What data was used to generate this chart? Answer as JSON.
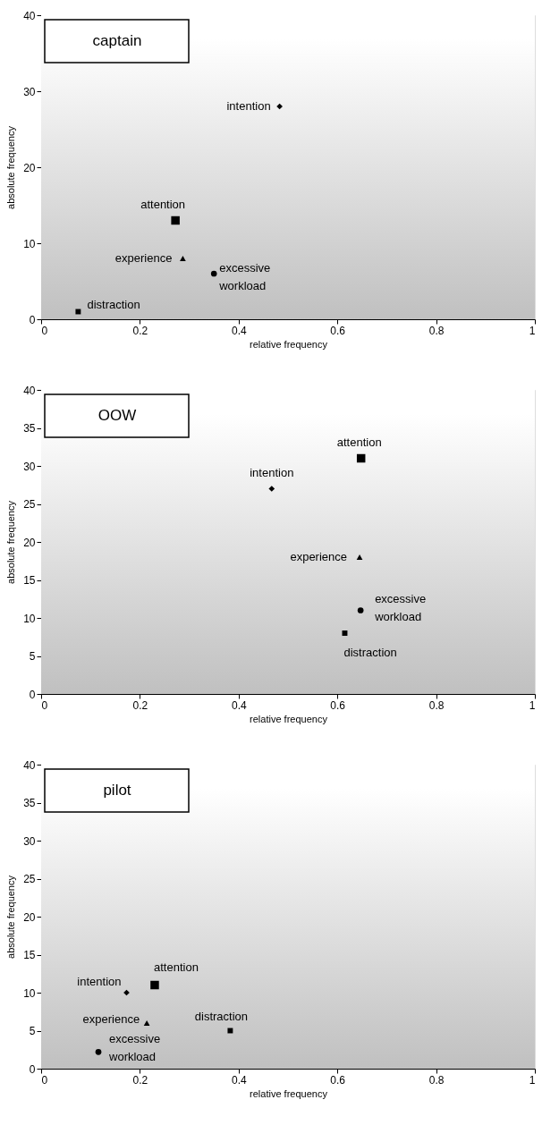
{
  "chart_data": [
    {
      "type": "scatter",
      "title": "captain",
      "xlabel": "relative frequency",
      "ylabel": "absolute frequency",
      "xlim": [
        0,
        1
      ],
      "xticks": [
        0,
        0.2,
        0.4,
        0.6,
        0.8,
        1
      ],
      "ylim": [
        0,
        40
      ],
      "yticks": [
        0,
        10,
        20,
        30,
        40
      ],
      "grid": false,
      "series": [
        {
          "name": "intention",
          "color": "#000000",
          "marker": "diamond",
          "x": [
            0.483
          ],
          "values": [
            28
          ]
        },
        {
          "name": "attention",
          "color": "#000000",
          "marker": "square",
          "x": [
            0.272
          ],
          "values": [
            13
          ]
        },
        {
          "name": "experience",
          "color": "#000000",
          "marker": "triangle",
          "x": [
            0.287
          ],
          "values": [
            8
          ]
        },
        {
          "name": "excessive workload",
          "color": "#000000",
          "marker": "circle",
          "x": [
            0.35
          ],
          "values": [
            6
          ]
        },
        {
          "name": "distraction",
          "color": "#000000",
          "marker": "square",
          "x": [
            0.075
          ],
          "values": [
            1
          ]
        }
      ]
    },
    {
      "type": "scatter",
      "title": "OOW",
      "xlabel": "relative frequency",
      "ylabel": "absolute frequency",
      "xlim": [
        0,
        1
      ],
      "xticks": [
        0,
        0.2,
        0.4,
        0.6,
        0.8,
        1
      ],
      "ylim": [
        0,
        40
      ],
      "yticks": [
        0,
        5,
        10,
        15,
        20,
        25,
        30,
        35,
        40
      ],
      "grid": false,
      "series": [
        {
          "name": "intention",
          "color": "#000000",
          "marker": "diamond",
          "x": [
            0.467
          ],
          "values": [
            27
          ]
        },
        {
          "name": "attention",
          "color": "#000000",
          "marker": "square",
          "x": [
            0.648
          ],
          "values": [
            31
          ]
        },
        {
          "name": "experience",
          "color": "#000000",
          "marker": "triangle",
          "x": [
            0.645
          ],
          "values": [
            18
          ]
        },
        {
          "name": "excessive workload",
          "color": "#000000",
          "marker": "circle",
          "x": [
            0.647
          ],
          "values": [
            11
          ]
        },
        {
          "name": "distraction",
          "color": "#000000",
          "marker": "square",
          "x": [
            0.615
          ],
          "values": [
            8
          ]
        }
      ]
    },
    {
      "type": "scatter",
      "title": "pilot",
      "xlabel": "relative frequency",
      "ylabel": "absolute frequency",
      "xlim": [
        0,
        1
      ],
      "xticks": [
        0,
        0.2,
        0.4,
        0.6,
        0.8,
        1
      ],
      "ylim": [
        0,
        40
      ],
      "yticks": [
        0,
        5,
        10,
        15,
        20,
        25,
        30,
        35,
        40
      ],
      "grid": false,
      "series": [
        {
          "name": "intention",
          "color": "#000000",
          "marker": "diamond",
          "x": [
            0.173
          ],
          "values": [
            10
          ]
        },
        {
          "name": "attention",
          "color": "#000000",
          "marker": "square",
          "x": [
            0.23
          ],
          "values": [
            11
          ]
        },
        {
          "name": "experience",
          "color": "#000000",
          "marker": "triangle",
          "x": [
            0.214
          ],
          "values": [
            6
          ]
        },
        {
          "name": "excessive workload",
          "color": "#000000",
          "marker": "circle",
          "x": [
            0.116
          ],
          "values": [
            2.2
          ]
        },
        {
          "name": "distraction",
          "color": "#000000",
          "marker": "square",
          "x": [
            0.383
          ],
          "values": [
            5
          ]
        }
      ]
    }
  ]
}
